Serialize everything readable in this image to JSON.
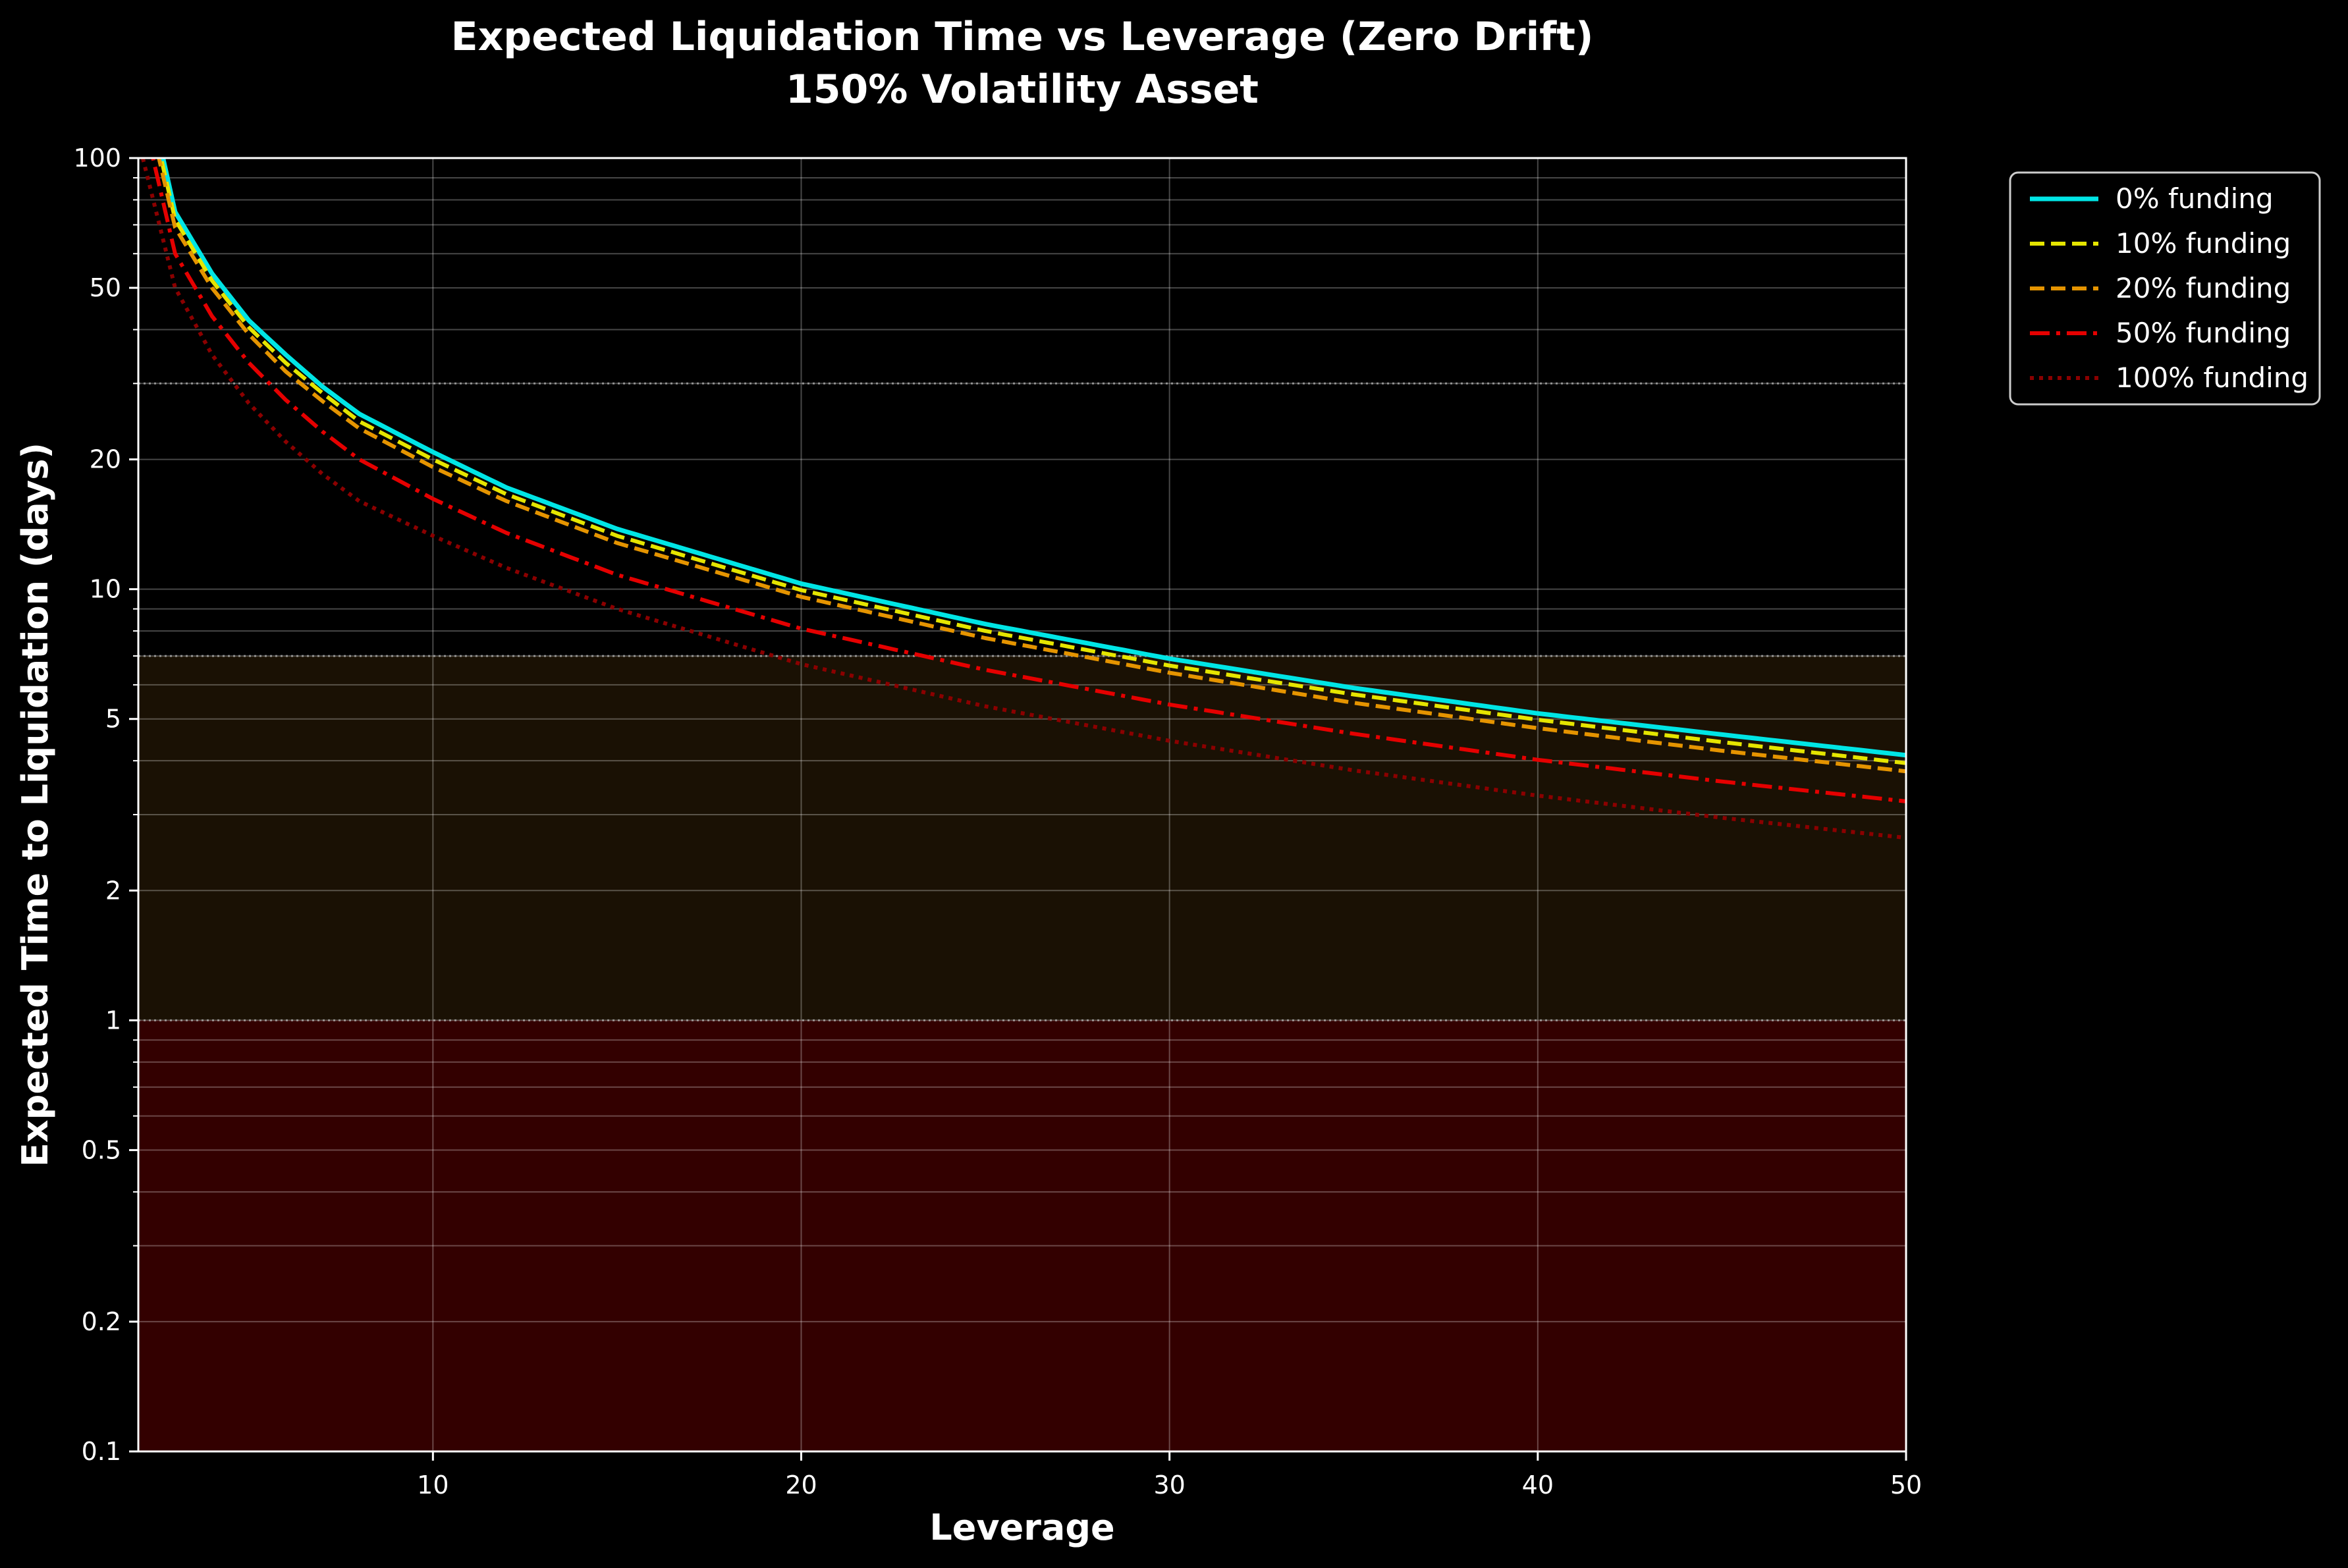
{
  "chart_data": {
    "type": "line",
    "title": "Expected Liquidation Time vs Leverage (Zero Drift)",
    "subtitle": "150% Volatility Asset",
    "xlabel": "Leverage",
    "ylabel": "Expected Time to Liquidation (days)",
    "xlim": [
      2,
      50
    ],
    "ylim": [
      0.1,
      100
    ],
    "yscale": "log",
    "x_ticks": [
      10,
      20,
      30,
      40,
      50
    ],
    "y_ticks": [
      0.1,
      0.2,
      0.5,
      1,
      2,
      5,
      10,
      20,
      50,
      100
    ],
    "y_tick_labels": [
      "0.1",
      "0.2",
      "0.5",
      "1",
      "2",
      "5",
      "10",
      "20",
      "50",
      "100"
    ],
    "grid": true,
    "legend_position": "outside-top-right",
    "background_bands": [
      {
        "from": 0.1,
        "to": 1,
        "color": "#330000"
      },
      {
        "from": 1,
        "to": 7,
        "color": "#1a1104"
      }
    ],
    "reference_lines": [
      1,
      7,
      30
    ],
    "x": [
      2,
      3,
      4,
      5,
      6,
      7,
      8,
      10,
      12,
      15,
      20,
      25,
      30,
      35,
      40,
      45,
      50
    ],
    "series": [
      {
        "name": "0% funding",
        "color": "#00e5e5",
        "style": "solid",
        "values": [
          180,
          75,
          54,
          42,
          35,
          29.5,
          25.5,
          20.8,
          17.2,
          13.8,
          10.3,
          8.3,
          6.9,
          5.9,
          5.15,
          4.6,
          4.12
        ]
      },
      {
        "name": "10% funding",
        "color": "#e5e500",
        "style": "dashed",
        "values": [
          170,
          72,
          52,
          40.5,
          33.5,
          28.5,
          24.5,
          20,
          16.6,
          13.3,
          9.95,
          8.0,
          6.65,
          5.7,
          4.98,
          4.42,
          3.95
        ]
      },
      {
        "name": "20% funding",
        "color": "#e59400",
        "style": "dashed",
        "values": [
          160,
          69,
          50,
          39,
          32,
          27.3,
          23.6,
          19.2,
          16,
          12.8,
          9.6,
          7.7,
          6.4,
          5.45,
          4.76,
          4.22,
          3.78
        ]
      },
      {
        "name": "50% funding",
        "color": "#e50000",
        "style": "dashdot",
        "values": [
          140,
          60,
          43,
          33.5,
          27.5,
          23.2,
          20,
          16.2,
          13.5,
          10.8,
          8.1,
          6.5,
          5.4,
          4.62,
          4.02,
          3.58,
          3.22
        ]
      },
      {
        "name": "100% funding",
        "color": "#8b0000",
        "style": "dotted",
        "values": [
          110,
          50,
          35,
          27,
          22,
          18.5,
          16,
          13.3,
          11.2,
          9,
          6.7,
          5.35,
          4.45,
          3.8,
          3.32,
          2.95,
          2.65
        ]
      }
    ]
  }
}
